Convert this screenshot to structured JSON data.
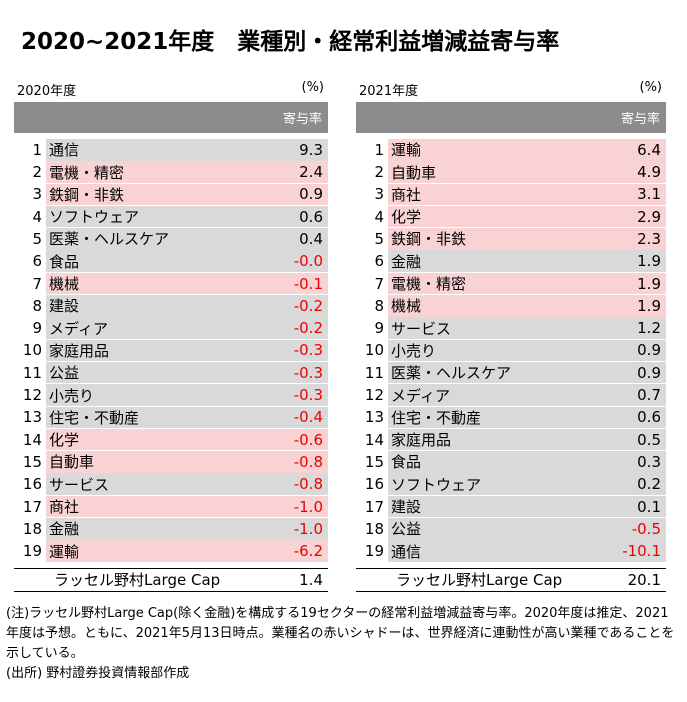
{
  "title": "2020~2021年度　業種別・経常利益増減益寄与率",
  "tables": [
    {
      "year": "2020年度",
      "unit": "(%)",
      "column_header": "寄与率",
      "rows": [
        {
          "rank": "1",
          "sector": "通信",
          "value": "9.3",
          "shade": "gray"
        },
        {
          "rank": "2",
          "sector": "電機・精密",
          "value": "2.4",
          "shade": "pink"
        },
        {
          "rank": "3",
          "sector": "鉄鋼・非鉄",
          "value": "0.9",
          "shade": "pink"
        },
        {
          "rank": "4",
          "sector": "ソフトウェア",
          "value": "0.6",
          "shade": "gray"
        },
        {
          "rank": "5",
          "sector": "医薬・ヘルスケア",
          "value": "0.4",
          "shade": "gray"
        },
        {
          "rank": "6",
          "sector": "食品",
          "value": "-0.0",
          "shade": "gray"
        },
        {
          "rank": "7",
          "sector": "機械",
          "value": "-0.1",
          "shade": "pink"
        },
        {
          "rank": "8",
          "sector": "建設",
          "value": "-0.2",
          "shade": "gray"
        },
        {
          "rank": "9",
          "sector": "メディア",
          "value": "-0.2",
          "shade": "gray"
        },
        {
          "rank": "10",
          "sector": "家庭用品",
          "value": "-0.3",
          "shade": "gray"
        },
        {
          "rank": "11",
          "sector": "公益",
          "value": "-0.3",
          "shade": "gray"
        },
        {
          "rank": "12",
          "sector": "小売り",
          "value": "-0.3",
          "shade": "gray"
        },
        {
          "rank": "13",
          "sector": "住宅・不動産",
          "value": "-0.4",
          "shade": "gray"
        },
        {
          "rank": "14",
          "sector": "化学",
          "value": "-0.6",
          "shade": "pink"
        },
        {
          "rank": "15",
          "sector": "自動車",
          "value": "-0.8",
          "shade": "pink"
        },
        {
          "rank": "16",
          "sector": "サービス",
          "value": "-0.8",
          "shade": "gray"
        },
        {
          "rank": "17",
          "sector": "商社",
          "value": "-1.0",
          "shade": "pink"
        },
        {
          "rank": "18",
          "sector": "金融",
          "value": "-1.0",
          "shade": "gray"
        },
        {
          "rank": "19",
          "sector": "運輸",
          "value": "-6.2",
          "shade": "pink"
        }
      ],
      "total_label": "ラッセル野村Large Cap",
      "total_value": "1.4"
    },
    {
      "year": "2021年度",
      "unit": "(%)",
      "column_header": "寄与率",
      "rows": [
        {
          "rank": "1",
          "sector": "運輸",
          "value": "6.4",
          "shade": "pink"
        },
        {
          "rank": "2",
          "sector": "自動車",
          "value": "4.9",
          "shade": "pink"
        },
        {
          "rank": "3",
          "sector": "商社",
          "value": "3.1",
          "shade": "pink"
        },
        {
          "rank": "4",
          "sector": "化学",
          "value": "2.9",
          "shade": "pink"
        },
        {
          "rank": "5",
          "sector": "鉄鋼・非鉄",
          "value": "2.3",
          "shade": "pink"
        },
        {
          "rank": "6",
          "sector": "金融",
          "value": "1.9",
          "shade": "gray"
        },
        {
          "rank": "7",
          "sector": "電機・精密",
          "value": "1.9",
          "shade": "pink"
        },
        {
          "rank": "8",
          "sector": "機械",
          "value": "1.9",
          "shade": "pink"
        },
        {
          "rank": "9",
          "sector": "サービス",
          "value": "1.2",
          "shade": "gray"
        },
        {
          "rank": "10",
          "sector": "小売り",
          "value": "0.9",
          "shade": "gray"
        },
        {
          "rank": "11",
          "sector": "医薬・ヘルスケア",
          "value": "0.9",
          "shade": "gray"
        },
        {
          "rank": "12",
          "sector": "メディア",
          "value": "0.7",
          "shade": "gray"
        },
        {
          "rank": "13",
          "sector": "住宅・不動産",
          "value": "0.6",
          "shade": "gray"
        },
        {
          "rank": "14",
          "sector": "家庭用品",
          "value": "0.5",
          "shade": "gray"
        },
        {
          "rank": "15",
          "sector": "食品",
          "value": "0.3",
          "shade": "gray"
        },
        {
          "rank": "16",
          "sector": "ソフトウェア",
          "value": "0.2",
          "shade": "gray"
        },
        {
          "rank": "17",
          "sector": "建設",
          "value": "0.1",
          "shade": "gray"
        },
        {
          "rank": "18",
          "sector": "公益",
          "value": "-0.5",
          "shade": "gray"
        },
        {
          "rank": "19",
          "sector": "通信",
          "value": "-10.1",
          "shade": "gray"
        }
      ],
      "total_label": "ラッセル野村Large Cap",
      "total_value": "20.1"
    }
  ],
  "notes": [
    "(注)ラッセル野村Large Cap(除く金融)を構成する19セクターの経常利益増減益寄与率。2020年度は推定、2021年度は予想。ともに、2021年5月13日時点。業種名の赤いシャドーは、世界経済に連動性が高い業種であることを示している。",
    "(出所) 野村證券投資情報部作成"
  ],
  "colors": {
    "header_gray": "#8c8c8c",
    "row_gray": "#d9d9d9",
    "row_pink": "#f9d3d3",
    "negative_red": "#ee0000"
  }
}
